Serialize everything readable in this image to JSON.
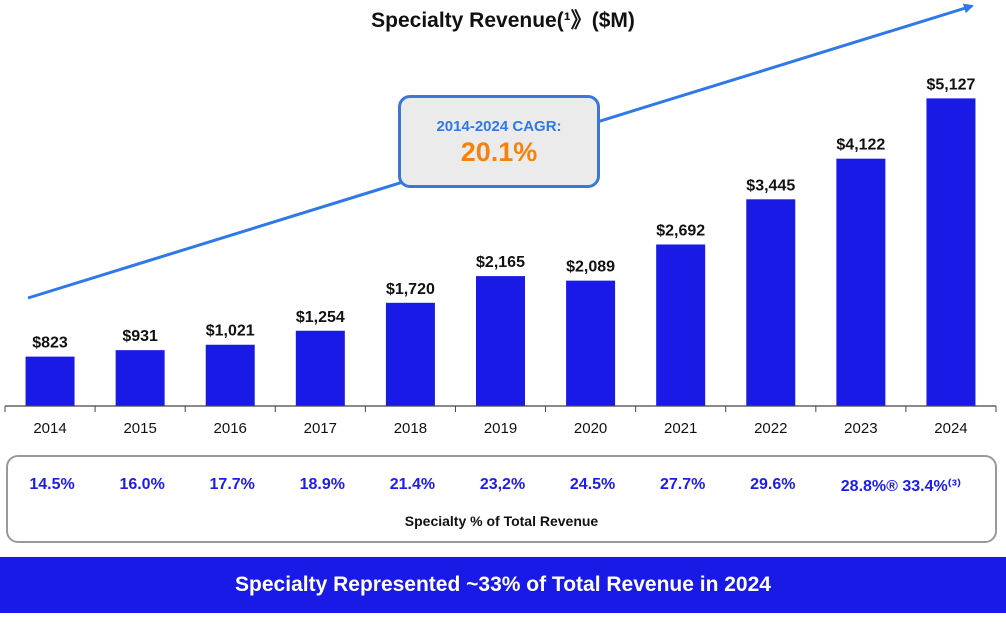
{
  "chart_data": {
    "type": "bar",
    "title": "Specialty Revenue(¹》($M)",
    "categories": [
      "2014",
      "2015",
      "2016",
      "2017",
      "2018",
      "2019",
      "2020",
      "2021",
      "2022",
      "2023",
      "2024"
    ],
    "values": [
      823,
      931,
      1021,
      1254,
      1720,
      2165,
      2089,
      2692,
      3445,
      4122,
      5127
    ],
    "value_labels": [
      "$823",
      "$931",
      "$1,021",
      "$1,254",
      "$1,720",
      "$2,165",
      "$2,089",
      "$2,692",
      "$3,445",
      "$4,122",
      "$5,127"
    ],
    "ylim": [
      0,
      5600
    ],
    "grid": false,
    "bar_color": "#1a1ae6",
    "trend_arrow_color": "#2f78e8"
  },
  "cagr": {
    "label": "2014-2024 CAGR:",
    "value": "20.1%"
  },
  "specialty_pct": {
    "values": [
      "14.5%",
      "16.0%",
      "17.7%",
      "18.9%",
      "21.4%",
      "23,2%",
      "24.5%",
      "27.7%",
      "29.6%",
      "28.8%® 33.4%⁽³⁾"
    ],
    "caption": "Specialty % of Total Revenue"
  },
  "banner": {
    "text": "Specialty Represented ~33% of Total Revenue in 2024"
  },
  "colors": {
    "bar": "#1a1ae6",
    "cagr_text": "#2f78e8",
    "cagr_value": "#f5820d",
    "pct_text": "#1c1ced"
  }
}
